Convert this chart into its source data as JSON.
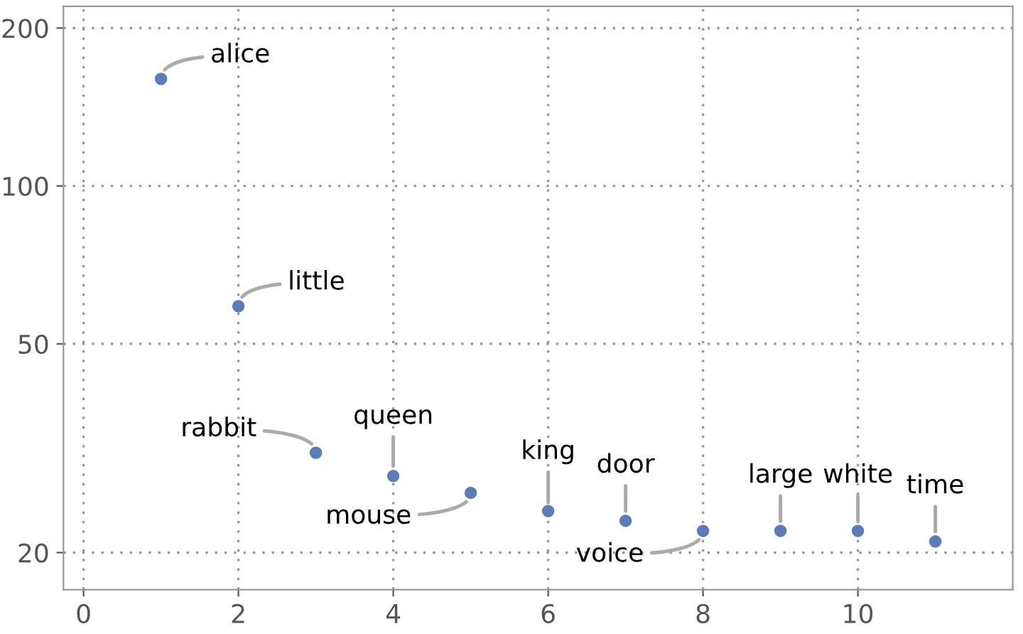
{
  "chart_data": {
    "type": "scatter",
    "x": [
      1,
      2,
      3,
      4,
      5,
      6,
      7,
      8,
      9,
      10,
      11
    ],
    "series": [
      {
        "color": "#5b7bb9",
        "values": [
          160,
          59,
          31,
          28,
          26,
          24,
          23,
          22,
          22,
          22,
          21
        ]
      }
    ],
    "annotations": [
      {
        "text": "alice",
        "x": 1,
        "y": 160
      },
      {
        "text": "little",
        "x": 2,
        "y": 59
      },
      {
        "text": "rabbit",
        "x": 3,
        "y": 31
      },
      {
        "text": "queen",
        "x": 4,
        "y": 28
      },
      {
        "text": "mouse",
        "x": 5,
        "y": 26
      },
      {
        "text": "king",
        "x": 6,
        "y": 24
      },
      {
        "text": "door",
        "x": 7,
        "y": 23
      },
      {
        "text": "voice",
        "x": 8,
        "y": 22
      },
      {
        "text": "large",
        "x": 9,
        "y": 22
      },
      {
        "text": "white",
        "x": 10,
        "y": 22
      },
      {
        "text": "time",
        "x": 11,
        "y": 21
      }
    ],
    "log": "y",
    "xlim": [
      -0.26,
      12
    ],
    "ylim": [
      17,
      220
    ],
    "xticks": [
      0,
      2,
      4,
      6,
      8,
      10
    ],
    "yticks": [
      20,
      50,
      100,
      200
    ],
    "grid": true,
    "marker": "circle"
  }
}
